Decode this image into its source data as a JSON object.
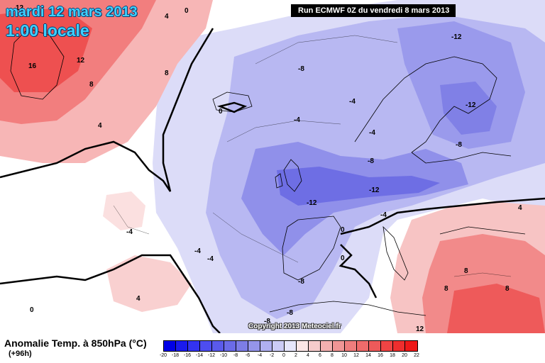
{
  "title": {
    "date": "mardi 12 mars 2013",
    "time": "1:00 locale"
  },
  "run_info": "Run ECMWF 0Z du vendredi 8 mars 2013",
  "copyright": "Copyright 2013 Meteociel.fr",
  "legend": {
    "title": "Anomalie Temp. à 850hPa (°C)",
    "forecast_hour": "(+96h)",
    "ticks": [
      "-20",
      "-18",
      "-16",
      "-14",
      "-12",
      "-10",
      "-8",
      "-6",
      "-4",
      "-2",
      "0",
      "2",
      "4",
      "6",
      "8",
      "10",
      "12",
      "14",
      "16",
      "18",
      "20",
      "22"
    ],
    "colors": [
      "#0000e6",
      "#1a1aee",
      "#3333f2",
      "#4d4df0",
      "#5a5aeb",
      "#6b6be8",
      "#7d7de6",
      "#9595ea",
      "#b0b0f0",
      "#ccccf6",
      "#e6e6fb",
      "#fbe6e6",
      "#f6cccc",
      "#f2b0b0",
      "#f09595",
      "#ee7d7d",
      "#ee6b6b",
      "#ee5a5a",
      "#ee4444",
      "#ee2e2e",
      "#ee1818"
    ]
  },
  "colors": {
    "warm_strong": "#ee4a4a",
    "warm_mid": "#f38a8a",
    "warm_light": "#f9caca",
    "neutral": "#f4f4ff",
    "cold_light": "#dcdcf8",
    "cold_mid": "#b4b4f0",
    "cold_strong": "#7e7ee6",
    "cold_core": "#5c5ce2"
  },
  "isotherm_labels": [
    "12",
    "4",
    "0",
    "12",
    "16",
    "8",
    "8",
    "4",
    "0",
    "-4",
    "-8",
    "-12",
    "-4",
    "-4",
    "-12",
    "-8",
    "-8",
    "-12",
    "-12",
    "-4",
    "-4",
    "-4",
    "-4",
    "0",
    "0",
    "-8",
    "-8",
    "-8",
    "4",
    "8",
    "8",
    "8",
    "12",
    "4",
    "0"
  ]
}
